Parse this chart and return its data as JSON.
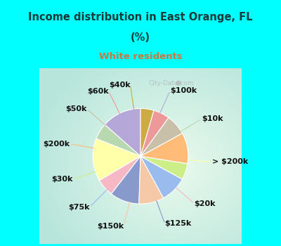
{
  "title_line1": "Income distribution in East Orange, FL",
  "title_line2": "(%)",
  "subtitle": "White residents",
  "title_color": "#1a3a3a",
  "subtitle_color": "#c87941",
  "background_color": "#00ffff",
  "labels": [
    "$100k",
    "$10k",
    "> $200k",
    "$20k",
    "$125k",
    "$150k",
    "$75k",
    "$30k",
    "$200k",
    "$50k",
    "$60k",
    "$40k"
  ],
  "values": [
    13.5,
    5.5,
    14.5,
    6.0,
    10.0,
    8.5,
    9.0,
    5.5,
    10.5,
    7.0,
    5.5,
    4.5
  ],
  "colors": [
    "#b5a8d8",
    "#b8d8b0",
    "#ffffaa",
    "#f5b8c4",
    "#8899cc",
    "#f5c9a8",
    "#99bbee",
    "#ccee88",
    "#ffbb77",
    "#c8c0a8",
    "#ee9999",
    "#ccaa44"
  ],
  "line_colors": [
    "#b5a8d8",
    "#b8d8b0",
    "#ffffaa",
    "#f5b8c4",
    "#8899cc",
    "#f5c9a8",
    "#99bbee",
    "#ccee88",
    "#ffbb77",
    "#c8c0a8",
    "#ee9999",
    "#ccaa44"
  ],
  "label_fontsize": 8,
  "startangle": 90,
  "labeldistance": 1.28,
  "watermark": "City-Data.com",
  "frame_color": "#00ffff",
  "frame_linewidth": 4
}
